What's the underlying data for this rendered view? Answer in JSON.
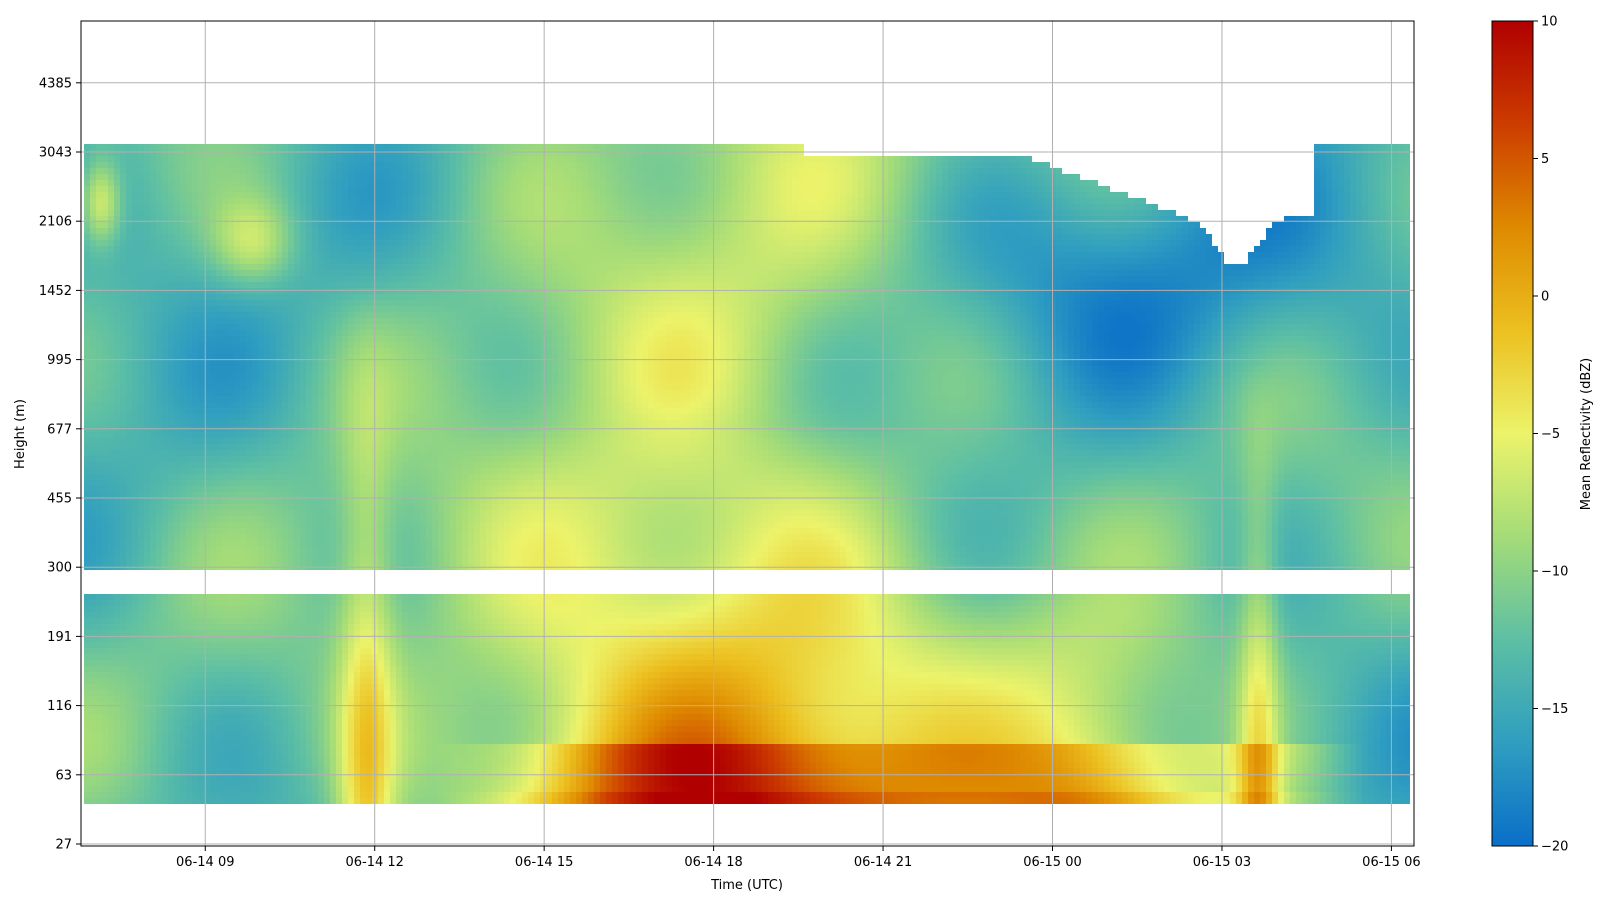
{
  "chart_data": {
    "type": "heatmap",
    "title": "",
    "xlabel": "Time (UTC)",
    "ylabel": "Height (m)",
    "x_ticks": [
      "06-14 09",
      "06-14 12",
      "06-14 15",
      "06-14 18",
      "06-14 21",
      "06-15 00",
      "06-15 03",
      "06-15 06"
    ],
    "y_ticks": [
      "27",
      "63",
      "116",
      "191",
      "300",
      "455",
      "677",
      "995",
      "1452",
      "2106",
      "3043",
      "4385"
    ],
    "x_range_hours": [
      6.8,
      30.4
    ],
    "colorbar": {
      "label": "Mean Reflectivity (dBZ)",
      "min": -20,
      "max": 10,
      "ticks": [
        "10",
        "5",
        "0",
        "−5",
        "−10",
        "−15",
        "−20"
      ],
      "colors": [
        "#0a6fc8",
        "#2f9ec0",
        "#5dbfa4",
        "#a4dc78",
        "#ecf36a",
        "#ecc020",
        "#de8a00",
        "#cc3c00",
        "#b00000"
      ]
    },
    "grid": true,
    "legend": "none",
    "description_fields": {
      "echo_top_height_m": 3043,
      "data_gap_height_range_m": [
        191,
        300
      ]
    }
  }
}
